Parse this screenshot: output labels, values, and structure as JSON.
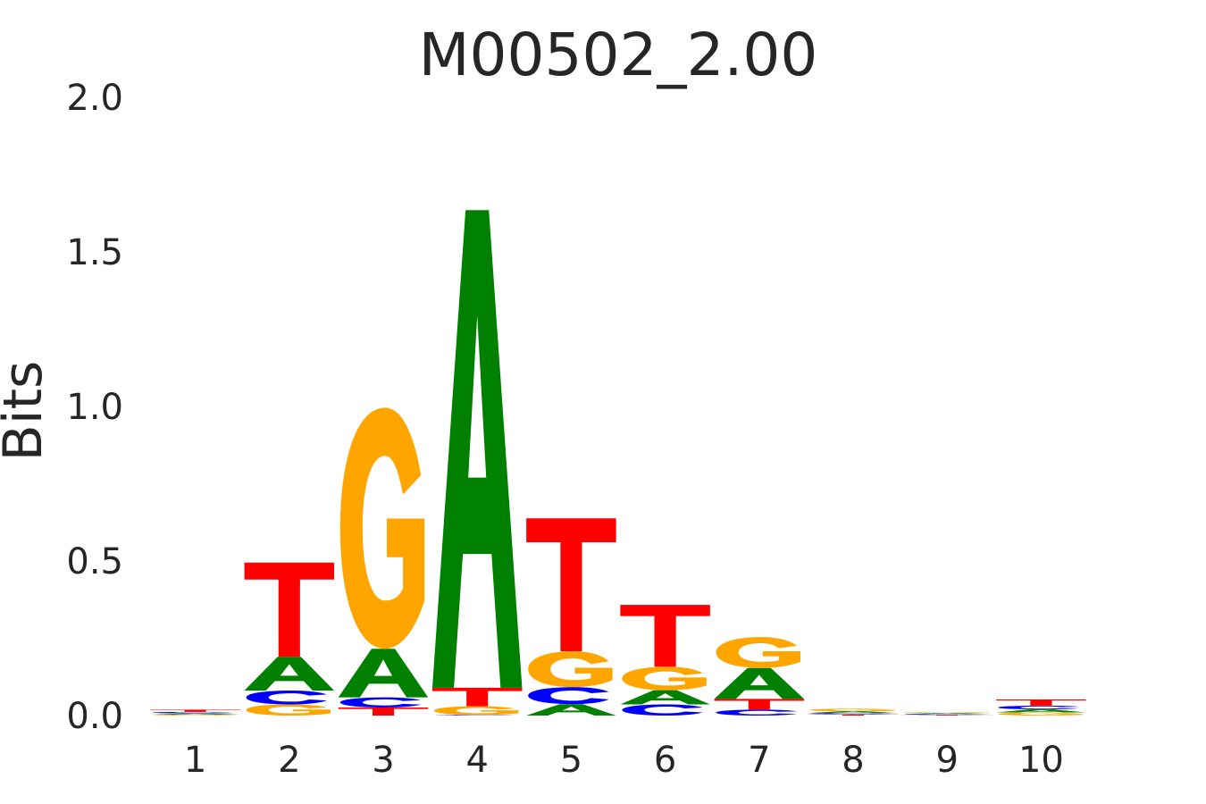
{
  "chart_data": {
    "type": "sequence-logo",
    "title": "M00502_2.00",
    "ylabel": "Bits",
    "xlabel": "",
    "ylim": [
      0,
      2.0
    ],
    "yticks": [
      "0.0",
      "0.5",
      "1.0",
      "1.5",
      "2.0"
    ],
    "yticks_values": [
      0,
      0.5,
      1.0,
      1.5,
      2.0
    ],
    "positions": [
      "1",
      "2",
      "3",
      "4",
      "5",
      "6",
      "7",
      "8",
      "9",
      "10"
    ],
    "grid": false,
    "colors": {
      "A": "#008000",
      "C": "#0000ff",
      "G": "#ffa500",
      "T": "#ff0000"
    },
    "stacks": [
      [
        {
          "base": "G",
          "bits": 0.003
        },
        {
          "base": "A",
          "bits": 0.004
        },
        {
          "base": "C",
          "bits": 0.005
        },
        {
          "base": "T",
          "bits": 0.007
        }
      ],
      [
        {
          "base": "G",
          "bits": 0.036
        },
        {
          "base": "C",
          "bits": 0.045
        },
        {
          "base": "A",
          "bits": 0.109
        },
        {
          "base": "T",
          "bits": 0.305
        }
      ],
      [
        {
          "base": "T",
          "bits": 0.026
        },
        {
          "base": "C",
          "bits": 0.033
        },
        {
          "base": "A",
          "bits": 0.157
        },
        {
          "base": "G",
          "bits": 0.78
        }
      ],
      [
        {
          "base": "C",
          "bits": 0.002
        },
        {
          "base": "G",
          "bits": 0.028
        },
        {
          "base": "T",
          "bits": 0.06
        },
        {
          "base": "A",
          "bits": 1.545
        }
      ],
      [
        {
          "base": "A",
          "bits": 0.037
        },
        {
          "base": "C",
          "bits": 0.055
        },
        {
          "base": "G",
          "bits": 0.116
        },
        {
          "base": "T",
          "bits": 0.43
        }
      ],
      [
        {
          "base": "C",
          "bits": 0.036
        },
        {
          "base": "A",
          "bits": 0.046
        },
        {
          "base": "G",
          "bits": 0.076
        },
        {
          "base": "T",
          "bits": 0.2
        }
      ],
      [
        {
          "base": "C",
          "bits": 0.019
        },
        {
          "base": "T",
          "bits": 0.035
        },
        {
          "base": "A",
          "bits": 0.1
        },
        {
          "base": "G",
          "bits": 0.1
        }
      ],
      [
        {
          "base": "T",
          "bits": 0.004
        },
        {
          "base": "C",
          "bits": 0.004
        },
        {
          "base": "A",
          "bits": 0.006
        },
        {
          "base": "G",
          "bits": 0.008
        }
      ],
      [
        {
          "base": "T",
          "bits": 0.002
        },
        {
          "base": "C",
          "bits": 0.003
        },
        {
          "base": "A",
          "bits": 0.003
        },
        {
          "base": "G",
          "bits": 0.003
        }
      ],
      [
        {
          "base": "G",
          "bits": 0.01
        },
        {
          "base": "A",
          "bits": 0.01
        },
        {
          "base": "C",
          "bits": 0.012
        },
        {
          "base": "T",
          "bits": 0.02
        }
      ]
    ]
  }
}
